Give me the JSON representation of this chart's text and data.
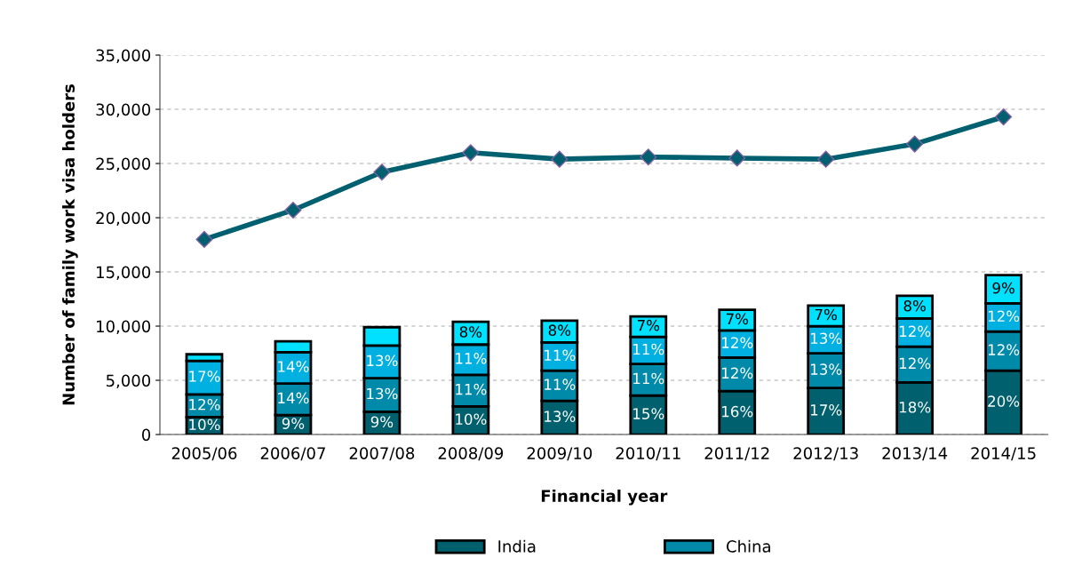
{
  "chart_data": {
    "type": "bar",
    "stacked": true,
    "xlabel": "Financial year",
    "ylabel": "Number of family work visa holders",
    "categories": [
      "2005/06",
      "2006/07",
      "2007/08",
      "2008/09",
      "2009/10",
      "2010/11",
      "2011/12",
      "2012/13",
      "2013/14",
      "2014/15"
    ],
    "series": [
      {
        "name": "India",
        "color": "#00606e",
        "values": [
          1600,
          1800,
          2100,
          2600,
          3100,
          3600,
          4000,
          4300,
          4800,
          5900
        ]
      },
      {
        "name": "China",
        "color": "#008aaa",
        "values": [
          2100,
          2900,
          3100,
          2900,
          2800,
          2900,
          3100,
          3200,
          3300,
          3600
        ]
      },
      {
        "color": "#00b0e0",
        "values": [
          3100,
          2900,
          3000,
          2800,
          2600,
          2500,
          2500,
          2500,
          2600,
          2600
        ]
      },
      {
        "color": "#00e0ff",
        "values": [
          600,
          1000,
          1700,
          2100,
          2000,
          1900,
          1900,
          1900,
          2100,
          2600
        ]
      },
      {
        "type": "line",
        "color": "#006070",
        "values": [
          18000,
          20700,
          24200,
          26000,
          25400,
          25600,
          25500,
          25400,
          26800,
          29300
        ]
      }
    ],
    "annotations": [
      {
        "text": "10%",
        "x": "2005/06",
        "y": 1600
      },
      {
        "text": "12%",
        "x": "2005/06",
        "y": 3700
      },
      {
        "text": "17%",
        "x": "2005/06",
        "y": 6800
      },
      {
        "text": "9%",
        "x": "2006/07",
        "y": 1800
      },
      {
        "text": "14%",
        "x": "2006/07",
        "y": 4700
      },
      {
        "text": "14%",
        "x": "2006/07",
        "y": 7600
      },
      {
        "text": "9%",
        "x": "2007/08",
        "y": 2100
      },
      {
        "text": "13%",
        "x": "2007/08",
        "y": 5200
      },
      {
        "text": "13%",
        "x": "2007/08",
        "y": 8200
      },
      {
        "text": "10%",
        "x": "2008/09",
        "y": 2600
      },
      {
        "text": "11%",
        "x": "2008/09",
        "y": 5500
      },
      {
        "text": "11%",
        "x": "2008/09",
        "y": 8300
      },
      {
        "text": "8%",
        "x": "2008/09",
        "y": 10400
      },
      {
        "text": "13%",
        "x": "2009/10",
        "y": 3100
      },
      {
        "text": "11%",
        "x": "2009/10",
        "y": 5900
      },
      {
        "text": "11%",
        "x": "2009/10",
        "y": 8500
      },
      {
        "text": "8%",
        "x": "2009/10",
        "y": 10500
      },
      {
        "text": "15%",
        "x": "2010/11",
        "y": 3600
      },
      {
        "text": "11%",
        "x": "2010/11",
        "y": 6500
      },
      {
        "text": "11%",
        "x": "2010/11",
        "y": 9000
      },
      {
        "text": "7%",
        "x": "2010/11",
        "y": 10900
      },
      {
        "text": "16%",
        "x": "2011/12",
        "y": 4000
      },
      {
        "text": "12%",
        "x": "2011/12",
        "y": 7100
      },
      {
        "text": "12%",
        "x": "2011/12",
        "y": 9600
      },
      {
        "text": "7%",
        "x": "2011/12",
        "y": 11500
      },
      {
        "text": "17%",
        "x": "2012/13",
        "y": 4300
      },
      {
        "text": "13%",
        "x": "2012/13",
        "y": 7500
      },
      {
        "text": "13%",
        "x": "2012/13",
        "y": 10000
      },
      {
        "text": "7%",
        "x": "2012/13",
        "y": 11900
      },
      {
        "text": "18%",
        "x": "2013/14",
        "y": 4800
      },
      {
        "text": "12%",
        "x": "2013/14",
        "y": 8100
      },
      {
        "text": "12%",
        "x": "2013/14",
        "y": 10700
      },
      {
        "text": "8%",
        "x": "2013/14",
        "y": 12800
      },
      {
        "text": "20%",
        "x": "2014/15",
        "y": 5900
      },
      {
        "text": "12%",
        "x": "2014/15",
        "y": 9500
      },
      {
        "text": "12%",
        "x": "2014/15",
        "y": 12100
      },
      {
        "text": "9%",
        "x": "2014/15",
        "y": 14700
      }
    ],
    "ylim": [
      0,
      35000
    ],
    "yticks": [
      0,
      {
        "value": 5000,
        "label": "5,000"
      },
      {
        "value": 10000,
        "label": "10,000"
      },
      {
        "value": 15000,
        "label": "15,000"
      },
      {
        "value": 20000,
        "label": "20,000"
      },
      {
        "value": 25000,
        "label": "25,000"
      },
      {
        "value": 30000,
        "label": "30,000"
      },
      {
        "value": 35000,
        "label": "35,000"
      }
    ],
    "grid": "y",
    "legend": "bottom",
    "marker": "diamond",
    "line_style": "solid"
  }
}
